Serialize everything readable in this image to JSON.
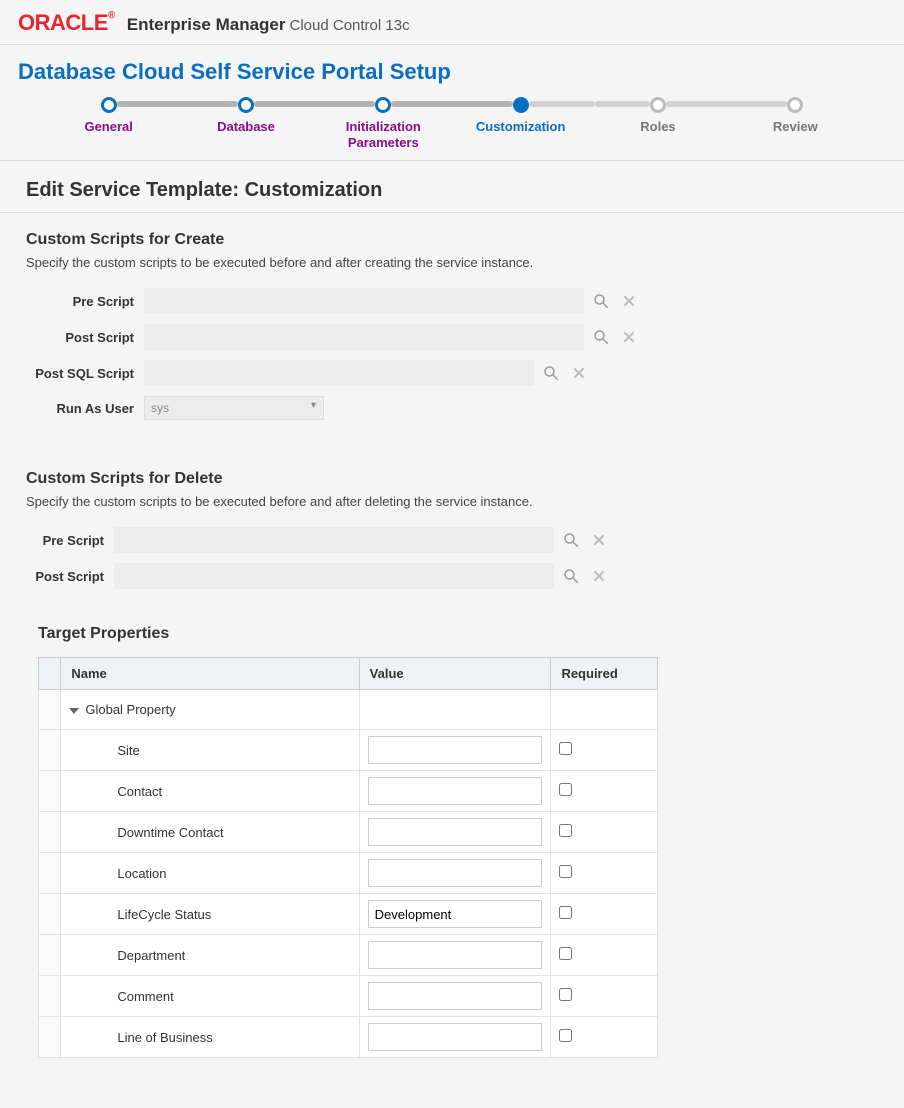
{
  "header": {
    "logo_text": "ORACLE",
    "logo_reg": "®",
    "app_title": "Enterprise Manager",
    "app_subtitle": "Cloud Control 13c"
  },
  "page_title": "Database Cloud Self Service Portal Setup",
  "wizard": {
    "steps": [
      {
        "label": "General",
        "state": "done"
      },
      {
        "label": "Database",
        "state": "done"
      },
      {
        "label": "Initialization\nParameters",
        "state": "done"
      },
      {
        "label": "Customization",
        "state": "current"
      },
      {
        "label": "Roles",
        "state": "future"
      },
      {
        "label": "Review",
        "state": "future"
      }
    ]
  },
  "section_heading": "Edit Service Template: Customization",
  "create": {
    "title": "Custom Scripts for Create",
    "desc": "Specify the custom scripts to be executed before and after creating the service instance.",
    "pre_label": "Pre Script",
    "pre_value": "",
    "post_label": "Post Script",
    "post_value": "",
    "sql_label": "Post SQL Script",
    "sql_value": "",
    "runas_label": "Run As User",
    "runas_value": "sys"
  },
  "delete": {
    "title": "Custom Scripts for Delete",
    "desc": "Specify the custom scripts to be executed before and after deleting the service instance.",
    "pre_label": "Pre Script",
    "pre_value": "",
    "post_label": "Post Script",
    "post_value": ""
  },
  "target_props": {
    "title": "Target Properties",
    "columns": {
      "name": "Name",
      "value": "Value",
      "required": "Required"
    },
    "root_label": "Global Property",
    "rows": [
      {
        "name": "Site",
        "value": "",
        "required": false
      },
      {
        "name": "Contact",
        "value": "",
        "required": false
      },
      {
        "name": "Downtime Contact",
        "value": "",
        "required": false
      },
      {
        "name": "Location",
        "value": "",
        "required": false
      },
      {
        "name": "LifeCycle Status",
        "value": "Development",
        "required": false
      },
      {
        "name": "Department",
        "value": "",
        "required": false
      },
      {
        "name": "Comment",
        "value": "",
        "required": false
      },
      {
        "name": "Line of Business",
        "value": "",
        "required": false
      }
    ]
  },
  "colors": {
    "brand_red": "#e8252d",
    "link_blue": "#0a6fc2",
    "visited_purple": "#8a0d8a",
    "bg": "#f5f5f5"
  }
}
